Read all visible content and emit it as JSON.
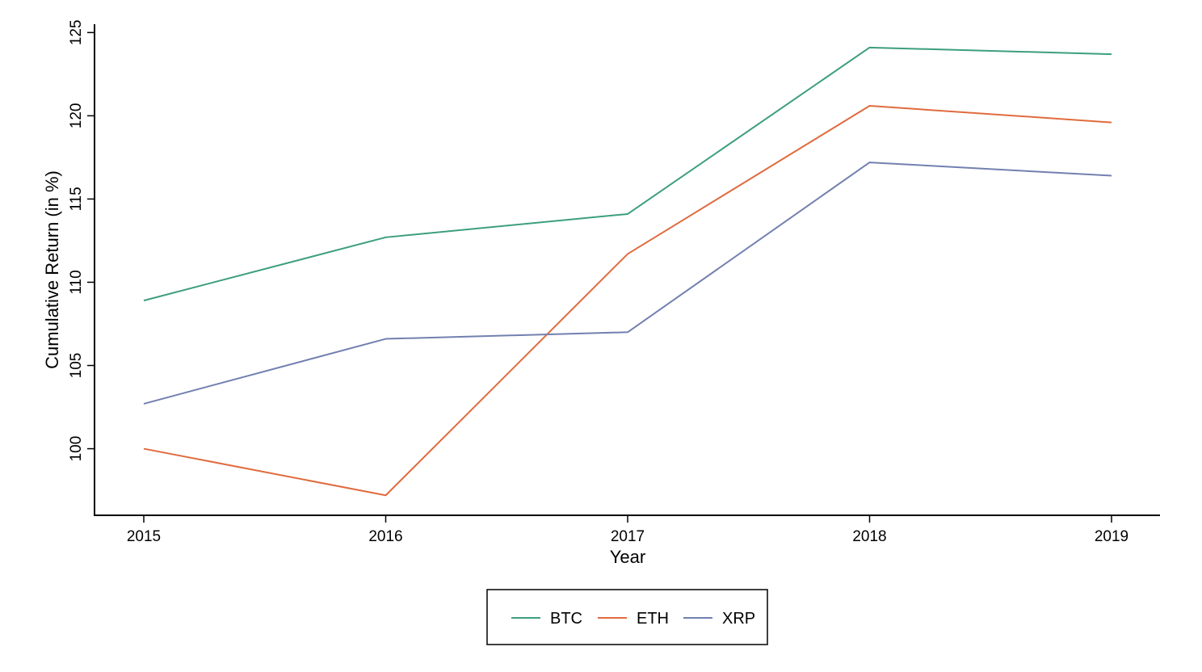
{
  "chart_data": {
    "type": "line",
    "title": "",
    "xlabel": "Year",
    "ylabel": "Cumulative Return (in %)",
    "x": [
      "2015",
      "2016",
      "2017",
      "2018",
      "2019"
    ],
    "yticks": [
      "100",
      "105",
      "110",
      "115",
      "120",
      "125"
    ],
    "ylim": [
      96,
      125.5
    ],
    "grid": false,
    "legend_position": "bottom-center",
    "series": [
      {
        "name": "BTC",
        "color": "#3d9e7f",
        "values": [
          108.9,
          112.7,
          114.1,
          124.1,
          123.7
        ]
      },
      {
        "name": "ETH",
        "color": "#e06b3e",
        "values": [
          100.0,
          97.2,
          111.7,
          120.6,
          119.6
        ]
      },
      {
        "name": "XRP",
        "color": "#7280b0",
        "values": [
          102.7,
          106.6,
          107.0,
          117.2,
          116.4
        ]
      }
    ]
  }
}
